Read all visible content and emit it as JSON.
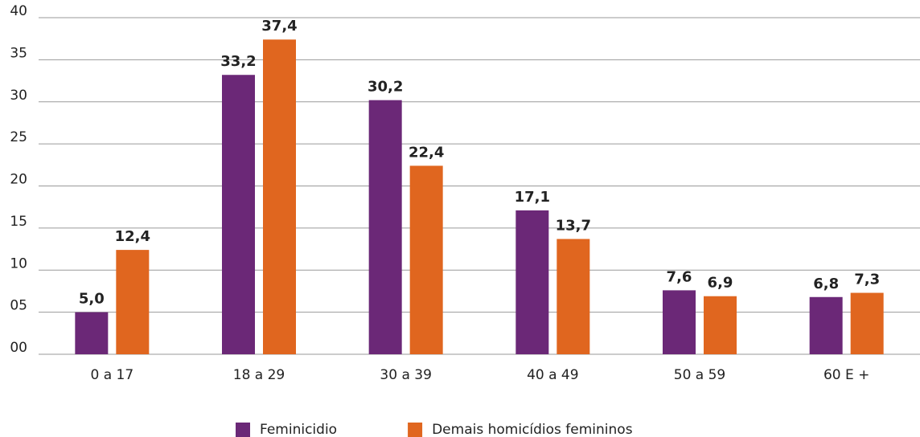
{
  "chart_data": {
    "type": "bar",
    "categories": [
      "0 a 17",
      "18 a 29",
      "30 a 39",
      "40 a 49",
      "50 a 59",
      "60 E +"
    ],
    "series": [
      {
        "name": "Feminicidio",
        "color": "#6b2877",
        "values": [
          5.0,
          33.2,
          30.2,
          17.1,
          7.6,
          6.8
        ],
        "value_labels": [
          "5,0",
          "33,2",
          "30,2",
          "17,1",
          "7,6",
          "6,8"
        ]
      },
      {
        "name": "Demais homicídios femininos",
        "color": "#e0661f",
        "values": [
          12.4,
          37.4,
          22.4,
          13.7,
          6.9,
          7.3
        ],
        "value_labels": [
          "12,4",
          "37,4",
          "22,4",
          "13,7",
          "6,9",
          "7,3"
        ]
      }
    ],
    "ylim": [
      0,
      40
    ],
    "yticks": [
      {
        "value": 0,
        "label": "00"
      },
      {
        "value": 5,
        "label": "05"
      },
      10,
      15,
      20,
      25,
      30,
      35,
      40
    ],
    "grid": true,
    "legend": "bottom"
  }
}
